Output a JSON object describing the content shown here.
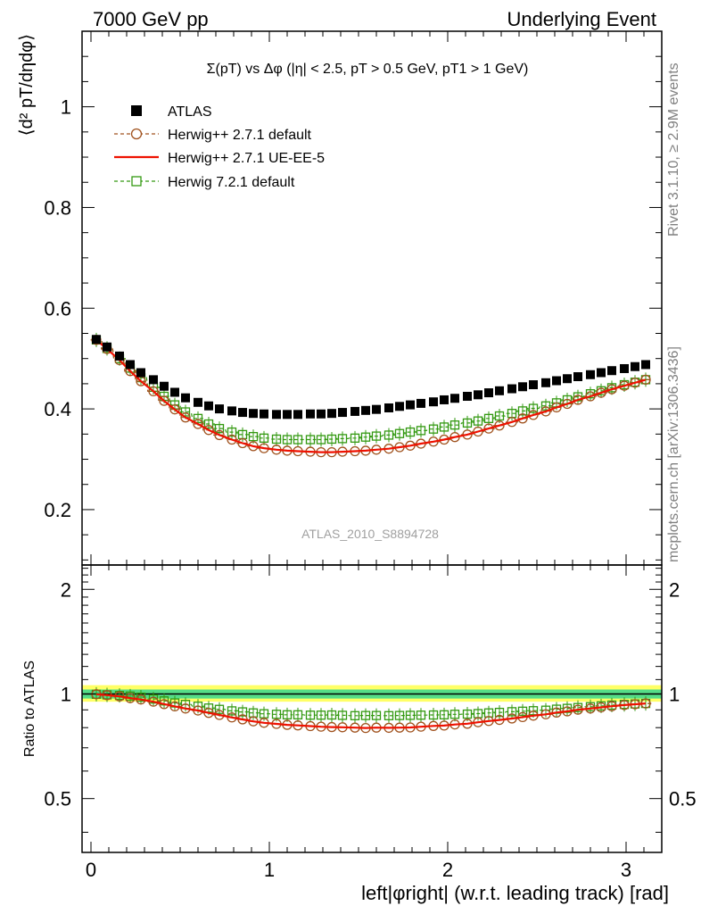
{
  "header": {
    "left": "7000 GeV pp",
    "right": "Underlying Event"
  },
  "side_labels": {
    "rivet": "Rivet 3.1.10, ≥ 2.9M events",
    "mcplots": "mcplots.cern.ch [arXiv:1306.3436]"
  },
  "chart_data": [
    {
      "type": "scatter",
      "panel": "main",
      "title": "Σ(pT) vs Δφ (|η| < 2.5, pT > 0.5 GeV, pT1 > 1 GeV)",
      "ylabel": "⟨d² pT/dηdφ⟩",
      "xlabel": "",
      "analysis_label": "ATLAS_2010_S8894728",
      "xlim": [
        -0.05,
        3.2
      ],
      "ylim": [
        0.09,
        1.15
      ],
      "x_ticks": [
        0,
        1,
        2,
        3
      ],
      "y_ticks": [
        0.2,
        0.4,
        0.6,
        0.8,
        1
      ],
      "y_tick_labels": [
        "0.2",
        "0.4",
        "0.6",
        "0.8",
        "1"
      ],
      "legend_position": "top-left",
      "x": [
        0.03,
        0.09,
        0.16,
        0.22,
        0.28,
        0.35,
        0.41,
        0.47,
        0.53,
        0.6,
        0.66,
        0.72,
        0.79,
        0.85,
        0.91,
        0.97,
        1.04,
        1.1,
        1.16,
        1.23,
        1.29,
        1.35,
        1.41,
        1.48,
        1.54,
        1.6,
        1.67,
        1.73,
        1.79,
        1.85,
        1.92,
        1.98,
        2.04,
        2.11,
        2.17,
        2.23,
        2.29,
        2.36,
        2.42,
        2.48,
        2.55,
        2.61,
        2.67,
        2.73,
        2.8,
        2.86,
        2.92,
        2.99,
        3.05,
        3.11
      ],
      "series": [
        {
          "name": "ATLAS",
          "values": [
            0.538,
            0.523,
            0.505,
            0.488,
            0.472,
            0.458,
            0.445,
            0.433,
            0.422,
            0.413,
            0.406,
            0.4,
            0.396,
            0.393,
            0.391,
            0.39,
            0.389,
            0.389,
            0.389,
            0.39,
            0.39,
            0.391,
            0.393,
            0.395,
            0.397,
            0.399,
            0.402,
            0.405,
            0.408,
            0.411,
            0.414,
            0.418,
            0.421,
            0.425,
            0.428,
            0.432,
            0.436,
            0.44,
            0.444,
            0.448,
            0.452,
            0.456,
            0.46,
            0.464,
            0.468,
            0.472,
            0.476,
            0.48,
            0.484,
            0.488
          ]
        },
        {
          "name": "Herwig++ 2.7.1 default",
          "values": [
            0.537,
            0.519,
            0.497,
            0.475,
            0.455,
            0.435,
            0.416,
            0.399,
            0.383,
            0.37,
            0.358,
            0.348,
            0.339,
            0.332,
            0.326,
            0.322,
            0.319,
            0.317,
            0.316,
            0.315,
            0.314,
            0.314,
            0.315,
            0.316,
            0.317,
            0.319,
            0.321,
            0.324,
            0.327,
            0.331,
            0.335,
            0.339,
            0.344,
            0.349,
            0.355,
            0.361,
            0.367,
            0.374,
            0.381,
            0.388,
            0.395,
            0.403,
            0.41,
            0.418,
            0.425,
            0.432,
            0.439,
            0.446,
            0.452,
            0.458
          ]
        },
        {
          "name": "Herwig++ 2.7.1 UE-EE-5",
          "values": [
            0.537,
            0.519,
            0.497,
            0.475,
            0.455,
            0.435,
            0.416,
            0.399,
            0.383,
            0.37,
            0.358,
            0.348,
            0.339,
            0.332,
            0.326,
            0.322,
            0.319,
            0.317,
            0.316,
            0.315,
            0.314,
            0.314,
            0.315,
            0.316,
            0.317,
            0.319,
            0.321,
            0.324,
            0.327,
            0.331,
            0.335,
            0.339,
            0.344,
            0.349,
            0.355,
            0.361,
            0.367,
            0.374,
            0.381,
            0.388,
            0.395,
            0.403,
            0.41,
            0.418,
            0.425,
            0.432,
            0.439,
            0.446,
            0.452,
            0.458
          ]
        },
        {
          "name": "Herwig 7.2.1 default",
          "values": [
            0.537,
            0.52,
            0.5,
            0.481,
            0.462,
            0.443,
            0.425,
            0.408,
            0.394,
            0.381,
            0.37,
            0.361,
            0.354,
            0.349,
            0.345,
            0.342,
            0.34,
            0.339,
            0.339,
            0.339,
            0.339,
            0.34,
            0.341,
            0.342,
            0.344,
            0.346,
            0.348,
            0.351,
            0.354,
            0.357,
            0.36,
            0.364,
            0.368,
            0.372,
            0.376,
            0.381,
            0.386,
            0.391,
            0.396,
            0.401,
            0.406,
            0.412,
            0.418,
            0.424,
            0.43,
            0.436,
            0.442,
            0.448,
            0.453,
            0.458
          ]
        }
      ]
    },
    {
      "type": "scatter",
      "panel": "ratio",
      "ylabel": "Ratio to ATLAS",
      "xlabel": "left|φright| (w.r.t. leading track) [rad]",
      "xlim": [
        -0.05,
        3.2
      ],
      "ylim": [
        0.35,
        2.35
      ],
      "y_scale": "log",
      "x_ticks": [
        0,
        1,
        2,
        3
      ],
      "x_tick_labels": [
        "0",
        "1",
        "2",
        "3"
      ],
      "y_ticks": [
        0.5,
        1,
        2
      ],
      "y_tick_labels": [
        "0.5",
        "1",
        "2"
      ],
      "reference_band": {
        "inner": [
          0.97,
          1.03
        ],
        "outer": [
          0.95,
          1.06
        ],
        "inner_color": "#55dd88",
        "outer_color": "#ffff66"
      },
      "x": [
        0.03,
        0.09,
        0.16,
        0.22,
        0.28,
        0.35,
        0.41,
        0.47,
        0.53,
        0.6,
        0.66,
        0.72,
        0.79,
        0.85,
        0.91,
        0.97,
        1.04,
        1.1,
        1.16,
        1.23,
        1.29,
        1.35,
        1.41,
        1.48,
        1.54,
        1.6,
        1.67,
        1.73,
        1.79,
        1.85,
        1.92,
        1.98,
        2.04,
        2.11,
        2.17,
        2.23,
        2.29,
        2.36,
        2.42,
        2.48,
        2.55,
        2.61,
        2.67,
        2.73,
        2.8,
        2.86,
        2.92,
        2.99,
        3.05,
        3.11
      ],
      "series": [
        {
          "name": "Herwig++ 2.7.1 default",
          "values": [
            0.998,
            0.992,
            0.984,
            0.973,
            0.964,
            0.95,
            0.935,
            0.921,
            0.908,
            0.896,
            0.882,
            0.87,
            0.856,
            0.845,
            0.834,
            0.826,
            0.82,
            0.815,
            0.812,
            0.808,
            0.805,
            0.803,
            0.802,
            0.8,
            0.798,
            0.8,
            0.799,
            0.8,
            0.801,
            0.805,
            0.809,
            0.811,
            0.817,
            0.821,
            0.829,
            0.836,
            0.842,
            0.85,
            0.858,
            0.866,
            0.874,
            0.884,
            0.891,
            0.901,
            0.908,
            0.915,
            0.922,
            0.929,
            0.934,
            0.939
          ]
        },
        {
          "name": "Herwig++ 2.7.1 UE-EE-5",
          "values": [
            0.998,
            0.992,
            0.984,
            0.973,
            0.964,
            0.95,
            0.935,
            0.921,
            0.908,
            0.896,
            0.882,
            0.87,
            0.856,
            0.845,
            0.834,
            0.826,
            0.82,
            0.815,
            0.812,
            0.808,
            0.805,
            0.803,
            0.802,
            0.8,
            0.798,
            0.8,
            0.799,
            0.8,
            0.801,
            0.805,
            0.809,
            0.811,
            0.817,
            0.821,
            0.829,
            0.836,
            0.842,
            0.85,
            0.858,
            0.866,
            0.874,
            0.884,
            0.891,
            0.901,
            0.908,
            0.915,
            0.922,
            0.929,
            0.934,
            0.939
          ]
        },
        {
          "name": "Herwig 7.2.1 default",
          "values": [
            0.998,
            0.994,
            0.99,
            0.986,
            0.979,
            0.967,
            0.955,
            0.942,
            0.933,
            0.922,
            0.911,
            0.903,
            0.894,
            0.888,
            0.882,
            0.877,
            0.874,
            0.871,
            0.871,
            0.869,
            0.869,
            0.87,
            0.868,
            0.866,
            0.867,
            0.867,
            0.866,
            0.867,
            0.868,
            0.869,
            0.87,
            0.871,
            0.874,
            0.875,
            0.878,
            0.882,
            0.885,
            0.889,
            0.892,
            0.895,
            0.898,
            0.904,
            0.909,
            0.914,
            0.919,
            0.924,
            0.929,
            0.933,
            0.936,
            0.939
          ]
        }
      ]
    }
  ],
  "colors": {
    "atlas": "#000000",
    "herwig_default": "#a0521e",
    "herwig_ueee5": "#ee1100",
    "herwig7": "#339911"
  }
}
